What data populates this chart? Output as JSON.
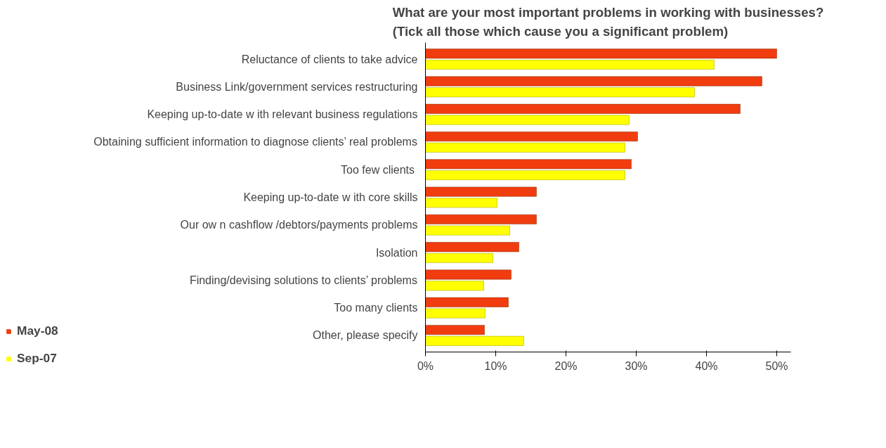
{
  "chart_data": {
    "type": "bar",
    "orientation": "horizontal",
    "title": "What are your most important problems in working with businesses?\n(Tick all those which cause you a significant problem)",
    "categories": [
      "Reluctance of clients to take advice",
      "Business Link/government services restructuring",
      "Keeping up-to-date w ith relevant business regulations",
      "Obtaining sufficient information to diagnose clients’ real problems",
      "Too few  clients",
      "Keeping up-to-date w ith core skills",
      "Our ow n cashflow /debtors/payments problems",
      "Isolation",
      "Finding/devising solutions to clients’ problems",
      "Too many clients",
      "Other, please specify"
    ],
    "series": [
      {
        "name": "May-08",
        "color": "#f03c0f",
        "values": [
          50,
          47.9,
          44.8,
          30.2,
          29.3,
          15.8,
          15.8,
          13.3,
          12.2,
          11.8,
          8.4
        ]
      },
      {
        "name": "Sep-07",
        "color": "#ffff00",
        "values": [
          41.1,
          38.3,
          29,
          28.4,
          28.4,
          10.2,
          12,
          9.6,
          8.3,
          8.5,
          14
        ]
      }
    ],
    "xlim": [
      0,
      52
    ],
    "xticks": [
      {
        "value": 0,
        "label": "0%"
      },
      {
        "value": 10,
        "label": "10%"
      },
      {
        "value": 20,
        "label": "20%"
      },
      {
        "value": 30,
        "label": "30%"
      },
      {
        "value": 40,
        "label": "40%"
      },
      {
        "value": 50,
        "label": "50%"
      }
    ],
    "grid": false,
    "legend": "bottom left"
  }
}
